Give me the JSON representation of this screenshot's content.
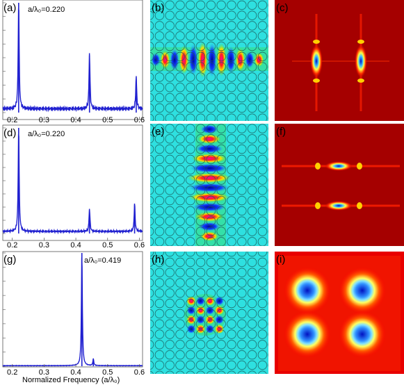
{
  "figure": {
    "x_axis_label": "Normalized Frequency (a/λ₀)"
  },
  "panels": {
    "a": {
      "label": "(a)",
      "annotation": "a/λ₀=0.220"
    },
    "b": {
      "label": "(b)"
    },
    "c": {
      "label": "(c)"
    },
    "d": {
      "label": "(d)",
      "annotation": "a/λ₀=0.220"
    },
    "e": {
      "label": "(e)"
    },
    "f": {
      "label": "(f)"
    },
    "g": {
      "label": "(g)",
      "annotation": "a/λ₀=0.419"
    },
    "h": {
      "label": "(h)"
    },
    "i": {
      "label": "(i)"
    }
  },
  "colors": {
    "spectrum_line": "#2020d0",
    "field_background": "#2ee0e0",
    "fourier_background": "#a50000"
  },
  "chart_data": [
    {
      "type": "line",
      "panel": "a",
      "xlabel": "",
      "ylabel": "",
      "xlim": [
        0.17,
        0.61
      ],
      "ylim": [
        0,
        1
      ],
      "x_ticks": [
        "0.2",
        "0.3",
        "0.4",
        "0.5",
        "0.6"
      ],
      "peaks": [
        {
          "x": 0.22,
          "y": 1.0
        },
        {
          "x": 0.443,
          "y": 0.52
        },
        {
          "x": 0.59,
          "y": 0.3
        }
      ],
      "baseline": 0.035
    },
    {
      "type": "line",
      "panel": "d",
      "xlabel": "",
      "ylabel": "",
      "xlim": [
        0.17,
        0.61
      ],
      "ylim": [
        0,
        1
      ],
      "x_ticks": [
        "0.2",
        "0.3",
        "0.4",
        "0.5",
        "0.6"
      ],
      "peaks": [
        {
          "x": 0.22,
          "y": 1.0
        },
        {
          "x": 0.443,
          "y": 0.22
        },
        {
          "x": 0.585,
          "y": 0.27
        }
      ],
      "baseline": 0.02
    },
    {
      "type": "line",
      "panel": "g",
      "xlabel": "Normalized Frequency (a/λ₀)",
      "ylabel": "",
      "xlim": [
        0.17,
        0.61
      ],
      "ylim": [
        0,
        1
      ],
      "x_ticks": [
        "0.2",
        "0.3",
        "0.4",
        "0.5",
        "0.6"
      ],
      "peaks": [
        {
          "x": 0.419,
          "y": 1.0
        },
        {
          "x": 0.455,
          "y": 0.06
        }
      ],
      "baseline": 0.005
    }
  ]
}
